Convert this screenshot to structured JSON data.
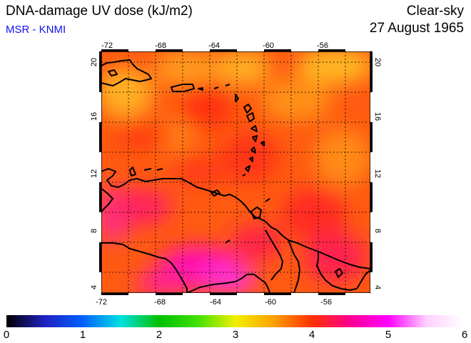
{
  "header": {
    "title": "DNA-damage UV dose (kJ/m2)",
    "subtitle": "MSR - KNMI",
    "scenario": "Clear-sky",
    "date": "27 August 1965"
  },
  "map": {
    "lon_range": [
      -72,
      -52
    ],
    "lat_range": [
      4,
      20
    ],
    "lon_ticks": [
      "-72",
      "-68",
      "-64",
      "-60",
      "-56"
    ],
    "lat_ticks": [
      "20",
      "16",
      "12",
      "8",
      "4"
    ],
    "grid_lines": true,
    "region": "Caribbean / northern South America"
  },
  "colorbar": {
    "labels": [
      "0",
      "1",
      "2",
      "3",
      "4",
      "5",
      "6"
    ],
    "min": 0,
    "max": 6,
    "colors": [
      "#000000",
      "#2020c0",
      "#0060ff",
      "#00e0e0",
      "#00c000",
      "#40e000",
      "#f0f000",
      "#ffa000",
      "#ff3000",
      "#ff0090",
      "#ff00ff",
      "#ffd0ff",
      "#ffffff"
    ]
  }
}
